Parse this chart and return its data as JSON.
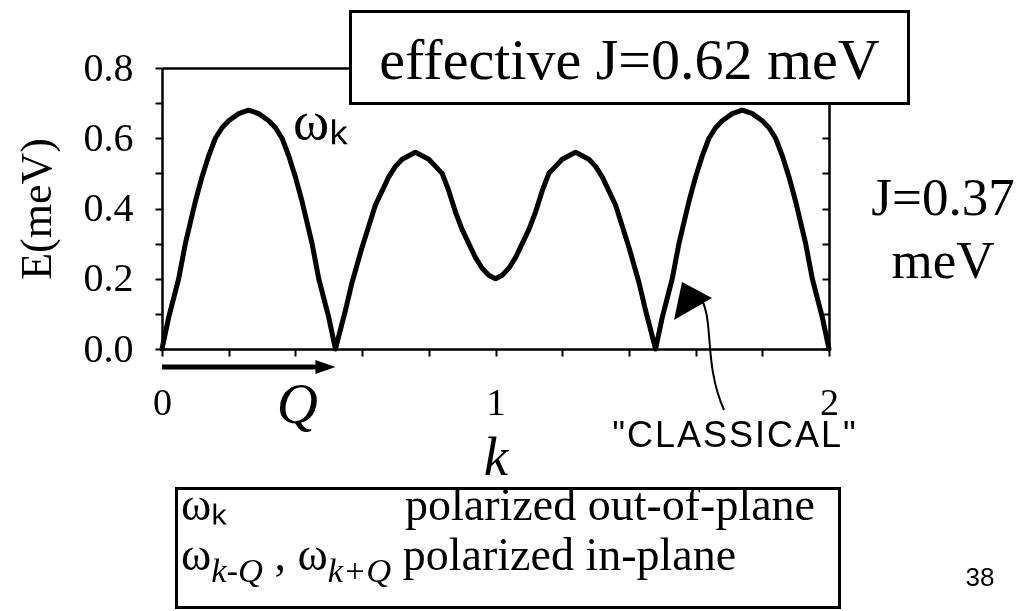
{
  "chart_data": {
    "type": "line",
    "title": "effective J=0.62 meV",
    "xlabel": "k",
    "ylabel": "E(meV)",
    "x": [
      0,
      0.02,
      0.05,
      0.07,
      0.1,
      0.12,
      0.14,
      0.16,
      0.18,
      0.2,
      0.23,
      0.26,
      0.29,
      0.32,
      0.34,
      0.36,
      0.38,
      0.4,
      0.42,
      0.45,
      0.47,
      0.5,
      0.52,
      0.55,
      0.57,
      0.6,
      0.62,
      0.64,
      0.66,
      0.68,
      0.7,
      0.72,
      0.74,
      0.76,
      0.78,
      0.8,
      0.82,
      0.84,
      0.86,
      0.88,
      0.9,
      0.92,
      0.94,
      0.96,
      0.98,
      1.0,
      1.02,
      1.04,
      1.06,
      1.08,
      1.1,
      1.12,
      1.14,
      1.16,
      1.18,
      1.2,
      1.22,
      1.24,
      1.26,
      1.28,
      1.3,
      1.32,
      1.34,
      1.36,
      1.38,
      1.4,
      1.43,
      1.45,
      1.48,
      1.5,
      1.53,
      1.55,
      1.58,
      1.6,
      1.62,
      1.64,
      1.66,
      1.68,
      1.71,
      1.74,
      1.77,
      1.8,
      1.82,
      1.84,
      1.86,
      1.88,
      1.9,
      1.93,
      1.95,
      1.98,
      2.0
    ],
    "series": [
      {
        "name": "ωₖ",
        "color": "#000000",
        "values": [
          0,
          0.09,
          0.2,
          0.3,
          0.42,
          0.49,
          0.55,
          0.6,
          0.63,
          0.65,
          0.67,
          0.68,
          0.67,
          0.65,
          0.63,
          0.6,
          0.55,
          0.49,
          0.42,
          0.3,
          0.2,
          0.09,
          0,
          0.11,
          0.19,
          0.29,
          0.35,
          0.41,
          0.45,
          0.49,
          0.52,
          0.54,
          0.55,
          0.56,
          0.55,
          0.54,
          0.52,
          0.5,
          0.45,
          0.39,
          0.34,
          0.3,
          0.26,
          0.23,
          0.21,
          0.2,
          0.21,
          0.23,
          0.26,
          0.3,
          0.34,
          0.39,
          0.45,
          0.5,
          0.52,
          0.54,
          0.55,
          0.56,
          0.55,
          0.54,
          0.52,
          0.49,
          0.45,
          0.41,
          0.35,
          0.29,
          0.19,
          0.11,
          0,
          0.09,
          0.2,
          0.3,
          0.42,
          0.49,
          0.55,
          0.6,
          0.63,
          0.65,
          0.67,
          0.68,
          0.67,
          0.65,
          0.63,
          0.6,
          0.55,
          0.49,
          0.42,
          0.3,
          0.2,
          0.09,
          0
        ]
      }
    ],
    "xlim": [
      0,
      2
    ],
    "ylim": [
      0,
      0.8
    ],
    "xticks": [
      0,
      {
        "value": 0.2,
        "label": null
      },
      {
        "value": 0.4,
        "label": null
      },
      {
        "value": 0.6,
        "label": null
      },
      {
        "value": 0.8,
        "label": null
      },
      1,
      {
        "value": 1.2,
        "label": null
      },
      {
        "value": 1.4,
        "label": null
      },
      {
        "value": 1.6,
        "label": null
      },
      {
        "value": 1.8,
        "label": null
      },
      2
    ],
    "yticks": [
      {
        "value": 0,
        "label": "0.0"
      },
      {
        "value": 0.1,
        "label": null
      },
      0.2,
      {
        "value": 0.3,
        "label": null
      },
      0.4,
      {
        "value": 0.5,
        "label": null
      },
      0.6,
      {
        "value": 0.7,
        "label": null
      },
      0.8
    ],
    "annotations": [
      {
        "text": "Q",
        "x": 0.52,
        "y": 0
      },
      "\"CLASSICAL\"",
      "J=0.37 meV",
      "ωₖ polarized out-of-plane",
      "ω$_{k-Q}$ , ω$_{k+Q}$ polarized in-plane",
      "38"
    ],
    "grid": false,
    "marker": "none",
    "line_style": "solid"
  }
}
